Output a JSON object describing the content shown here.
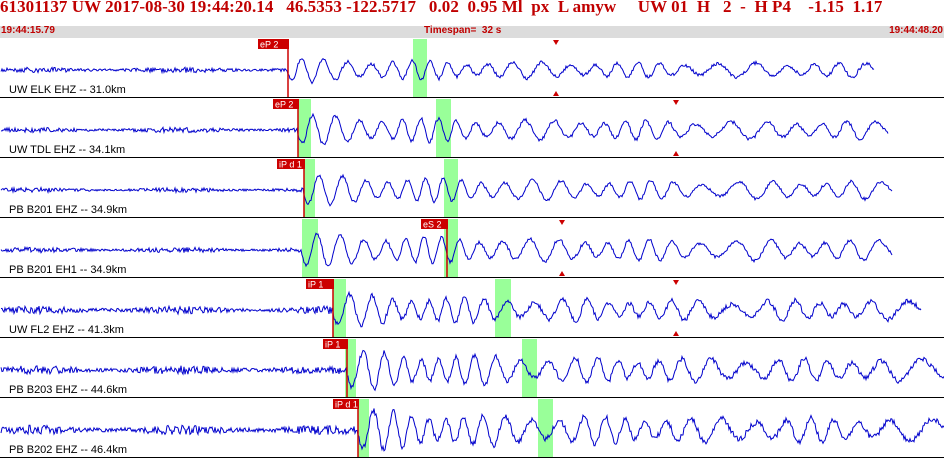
{
  "header": {
    "title": "61301137 UW 2017-08-30 19:44:20.14   46.5353 -122.5717   0.02  0.95 Ml  px  L amyw     UW 01  H   2  -  H P4    -1.15  1.17",
    "start_time": "19:44:15.79",
    "timespan": "Timespan=  32 s",
    "end_time": "19:44:48.20"
  },
  "colors": {
    "title": "#c00000",
    "waveform": "#0000cc",
    "pick": "#cc0000",
    "window": "#99ff99",
    "timebar": "#dcdcdc"
  },
  "traces": [
    {
      "label": "UW ELK EHZ -- 31.0km",
      "pick": "eP 2",
      "extra_pick": "",
      "noise": 3.5,
      "signal": 13,
      "greens": [
        0.3055,
        0.4423
      ]
    },
    {
      "label": "UW TDL EHZ -- 34.1km",
      "pick": "eP 2",
      "extra_pick": "",
      "noise": 3.5,
      "signal": 16,
      "greens": [
        0.3224,
        0.4761
      ]
    },
    {
      "label": "PB B201 EHZ -- 34.9km",
      "pick": "iP d 1",
      "extra_pick": "",
      "noise": 3,
      "signal": 16,
      "greens": [
        0.3277,
        0.4814
      ]
    },
    {
      "label": "PB B201 EH1 -- 34.9km",
      "pick": "",
      "extra_pick": "eS 2",
      "noise": 3.5,
      "signal": 18,
      "greens": [
        0.3266,
        0.4814
      ]
    },
    {
      "label": "UW FL2 EHZ -- 41.3km",
      "pick": "iP 1",
      "extra_pick": "",
      "noise": 5,
      "signal": 17,
      "greens": [
        0.3605,
        0.5328
      ]
    },
    {
      "label": "PB B203 EHZ -- 44.6km",
      "pick": "iP 1",
      "extra_pick": "",
      "noise": 5.5,
      "signal": 20,
      "greens": [
        0.3753,
        0.5614
      ]
    },
    {
      "label": "PB B202 EHZ -- 46.4km",
      "pick": "iP d 1",
      "extra_pick": "",
      "noise": 6,
      "signal": 21,
      "greens": [
        0.387,
        0.5784
      ]
    }
  ]
}
